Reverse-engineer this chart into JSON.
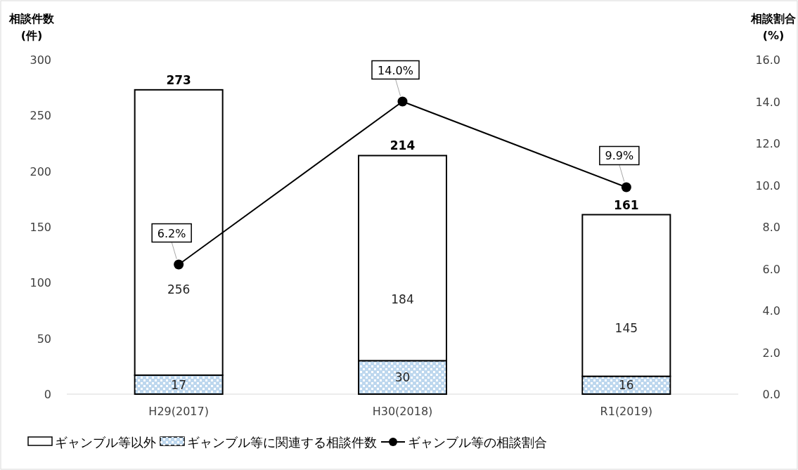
{
  "chart_data": {
    "type": "bar",
    "stacked": true,
    "categories": [
      "H29(2017)",
      "H30(2018)",
      "R1(2019)"
    ],
    "series": [
      {
        "name": "ギャンブル等に関連する相談件数",
        "color": "#bdd7ee",
        "values": [
          17,
          30,
          16
        ]
      },
      {
        "name": "ギャンブル等以外",
        "color": "#ffffff",
        "values": [
          256,
          184,
          145
        ]
      },
      {
        "name": "ギャンブル等の相談割合",
        "type": "line",
        "axis": "y2",
        "color": "#000000",
        "marker": "circle",
        "values": [
          6.2,
          14.0,
          9.9
        ],
        "value_labels": [
          "6.2%",
          "14.0%",
          "9.9%"
        ]
      }
    ],
    "totals": [
      "273",
      "214",
      "161"
    ],
    "data_labels": true,
    "ylabel": "相談件数\n(件)",
    "y2label": "相談割合\n(%)",
    "ylim": [
      0,
      300
    ],
    "yticks": [
      0,
      50,
      100,
      150,
      200,
      250,
      300
    ],
    "y2lim": [
      0,
      16
    ],
    "y2ticks": [
      {
        "value": 0,
        "label": "0.0"
      },
      {
        "value": 2,
        "label": "2.0"
      },
      {
        "value": 4,
        "label": "4.0"
      },
      {
        "value": 6,
        "label": "6.0"
      },
      {
        "value": 8,
        "label": "8.0"
      },
      {
        "value": 10,
        "label": "10.0"
      },
      {
        "value": 12,
        "label": "12.0"
      },
      {
        "value": 14,
        "label": "14.0"
      },
      {
        "value": 16,
        "label": "16.0"
      }
    ],
    "grid": false,
    "legend": "bottom"
  }
}
